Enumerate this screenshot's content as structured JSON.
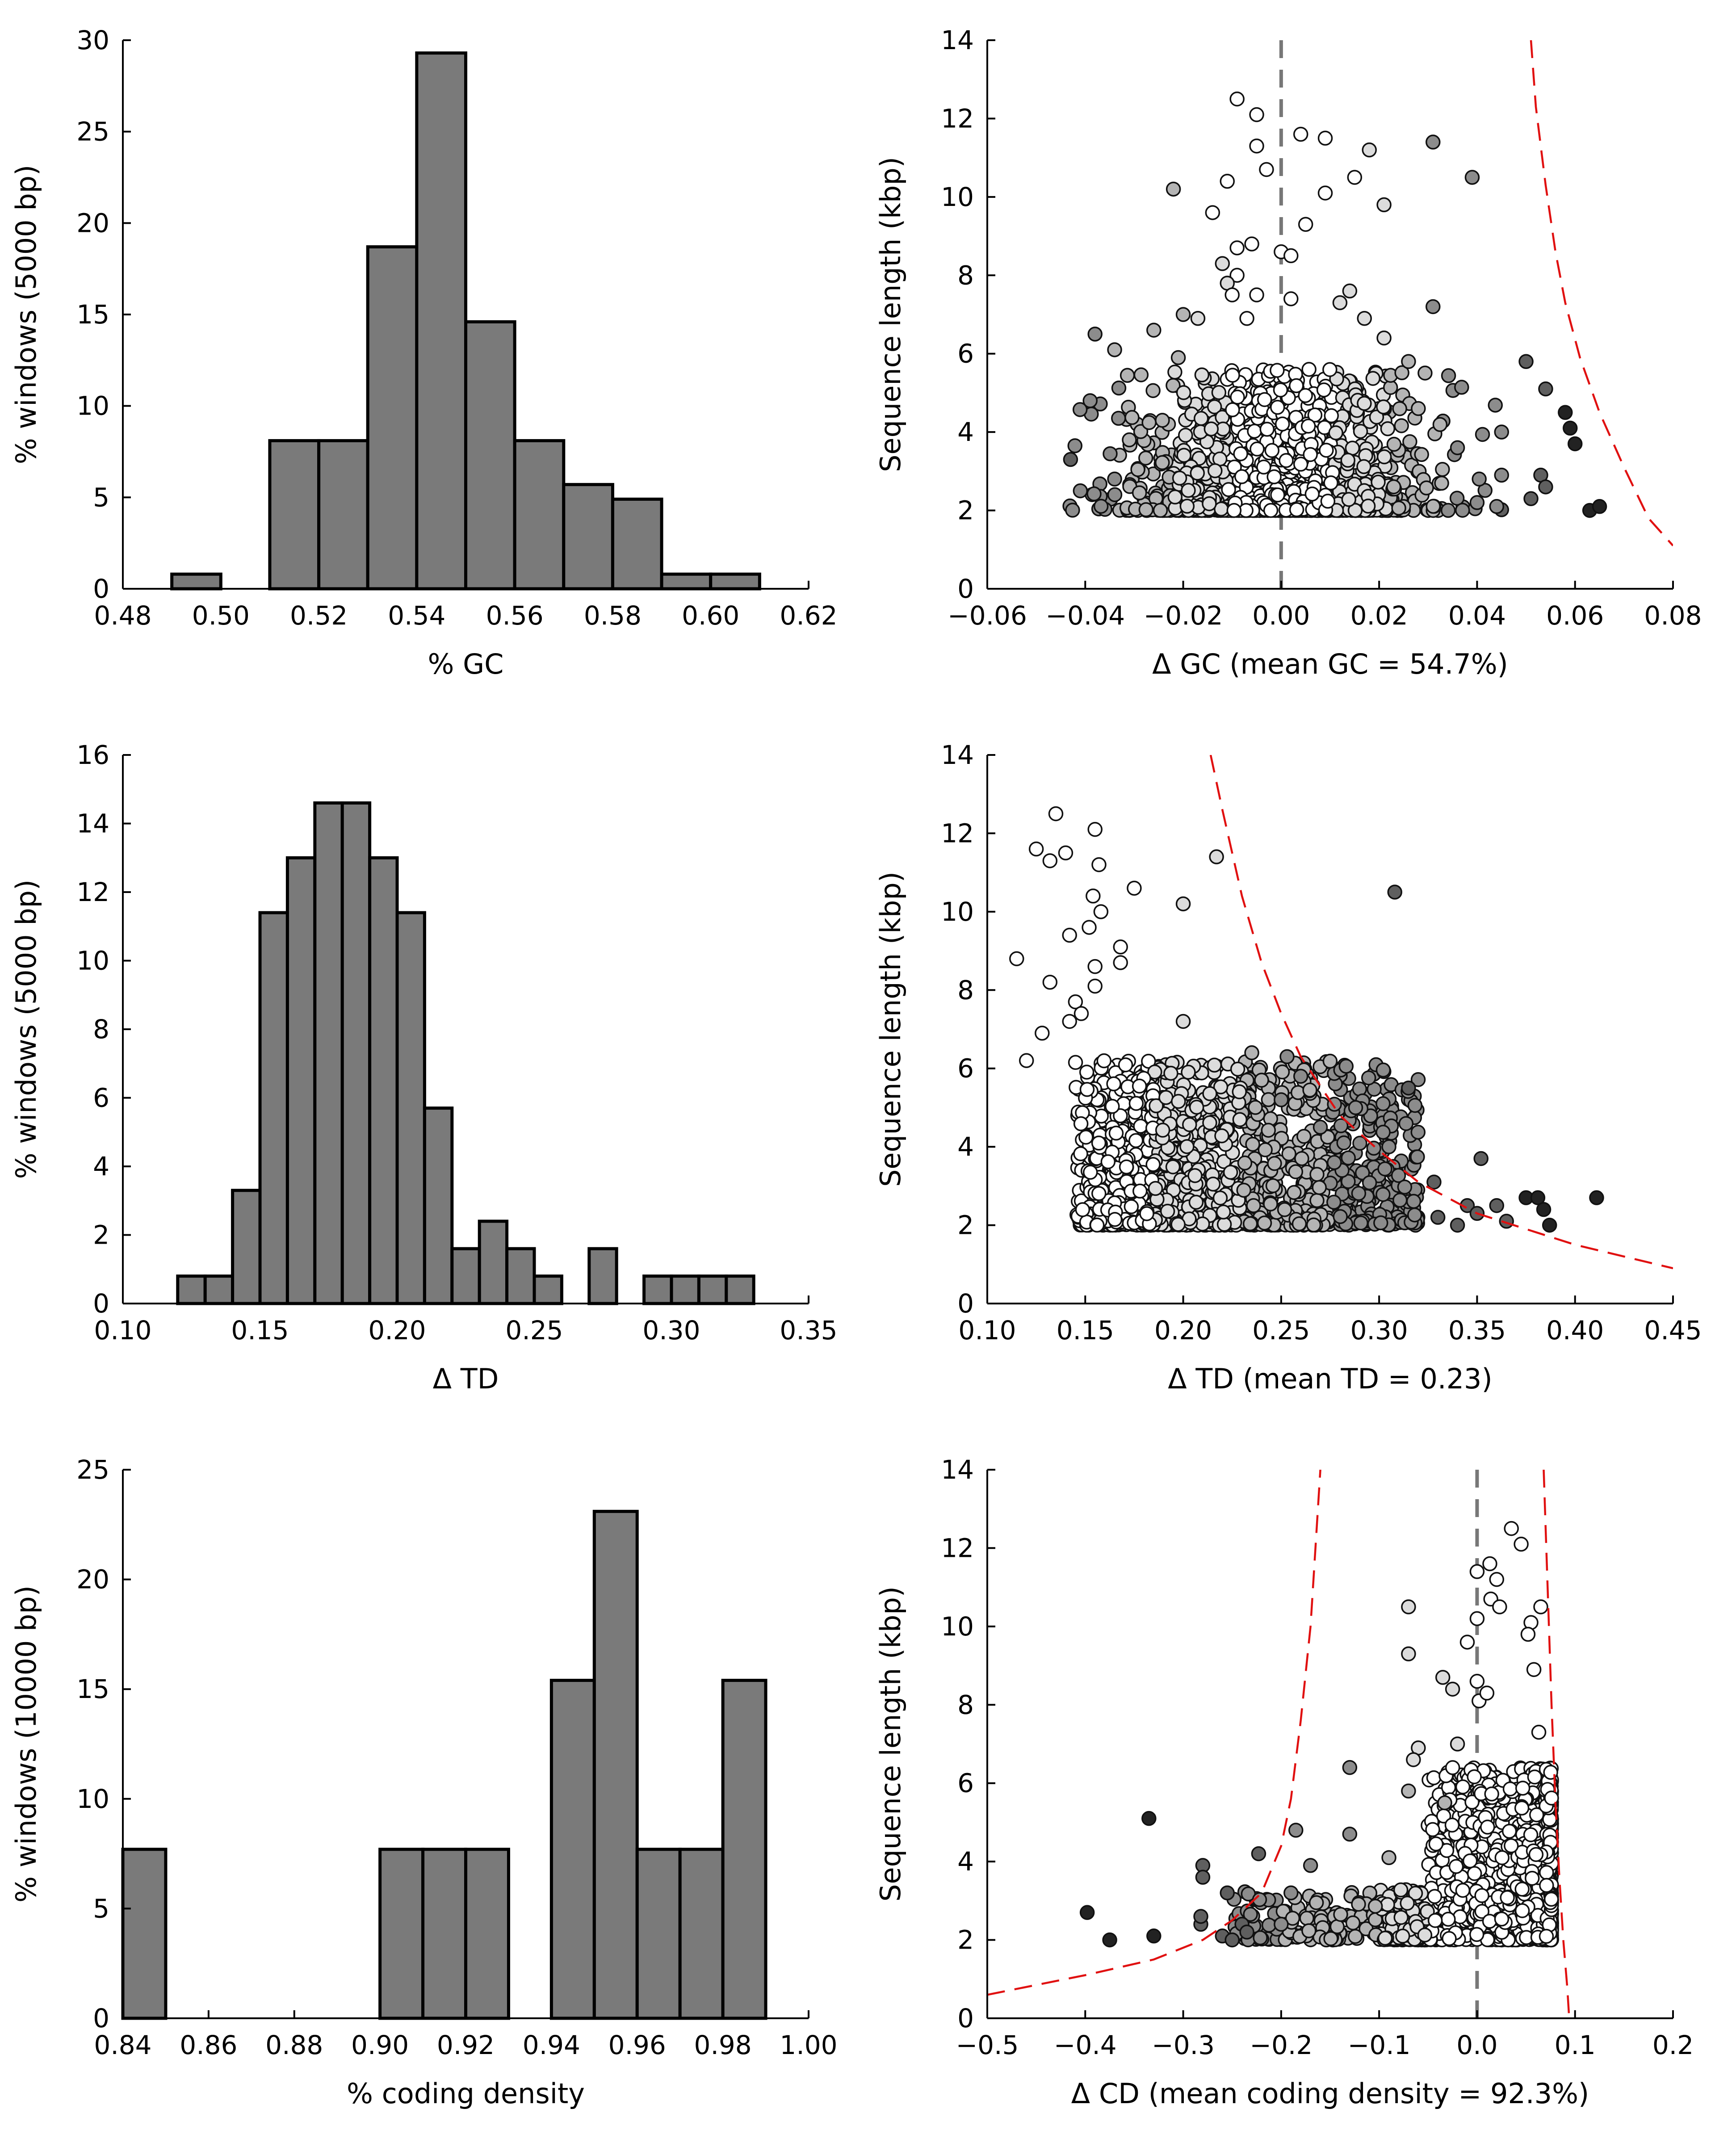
{
  "chart_data": [
    {
      "type": "bar",
      "panel": "gc-histogram",
      "xlabel": "% GC",
      "ylabel": "% windows (5000 bp)",
      "xlim": [
        0.48,
        0.62
      ],
      "ylim": [
        0,
        30
      ],
      "xticks": [
        "0.48",
        "0.50",
        "0.52",
        "0.54",
        "0.56",
        "0.58",
        "0.60",
        "0.62"
      ],
      "yticks": [
        "0",
        "5",
        "10",
        "15",
        "20",
        "25",
        "30"
      ],
      "bin_width": 0.01,
      "bins": [
        {
          "x0": 0.49,
          "value": 0.8
        },
        {
          "x0": 0.51,
          "value": 8.1
        },
        {
          "x0": 0.52,
          "value": 8.1
        },
        {
          "x0": 0.53,
          "value": 18.7
        },
        {
          "x0": 0.54,
          "value": 29.3
        },
        {
          "x0": 0.55,
          "value": 14.6
        },
        {
          "x0": 0.56,
          "value": 8.1
        },
        {
          "x0": 0.57,
          "value": 5.7
        },
        {
          "x0": 0.58,
          "value": 4.9
        },
        {
          "x0": 0.59,
          "value": 0.8
        },
        {
          "x0": 0.6,
          "value": 0.8
        }
      ]
    },
    {
      "type": "scatter",
      "panel": "gc-scatter",
      "xlabel": "Δ GC (mean GC = 54.7%)",
      "ylabel": "Sequence length (kbp)",
      "xlim": [
        -0.06,
        0.08
      ],
      "ylim": [
        0,
        14
      ],
      "xticks": [
        "−0.06",
        "−0.04",
        "−0.02",
        "0.00",
        "0.02",
        "0.04",
        "0.06",
        "0.08"
      ],
      "yticks": [
        "0",
        "2",
        "4",
        "6",
        "8",
        "10",
        "12",
        "14"
      ],
      "zero_line": true,
      "points": [
        [
          -0.009,
          12.5,
          0
        ],
        [
          -0.005,
          12.1,
          0
        ],
        [
          0.004,
          11.6,
          0
        ],
        [
          0.009,
          11.5,
          0
        ],
        [
          -0.005,
          11.3,
          0
        ],
        [
          0.018,
          11.2,
          1
        ],
        [
          0.031,
          11.4,
          3
        ],
        [
          0.039,
          10.5,
          3
        ],
        [
          -0.003,
          10.7,
          0
        ],
        [
          -0.011,
          10.4,
          0
        ],
        [
          0.015,
          10.5,
          0
        ],
        [
          -0.022,
          10.2,
          2
        ],
        [
          0.009,
          10.1,
          0
        ],
        [
          0.021,
          9.8,
          1
        ],
        [
          -0.014,
          9.6,
          0
        ],
        [
          0.005,
          9.3,
          0
        ],
        [
          -0.009,
          8.7,
          0
        ],
        [
          -0.006,
          8.8,
          0
        ],
        [
          0.0,
          8.6,
          0
        ],
        [
          0.002,
          8.5,
          0
        ],
        [
          -0.012,
          8.3,
          1
        ],
        [
          -0.009,
          8.0,
          0
        ],
        [
          -0.011,
          7.8,
          1
        ],
        [
          -0.01,
          7.5,
          0
        ],
        [
          0.014,
          7.6,
          1
        ],
        [
          0.012,
          7.3,
          1
        ],
        [
          -0.005,
          7.5,
          0
        ],
        [
          0.002,
          7.4,
          0
        ],
        [
          0.031,
          7.2,
          3
        ],
        [
          -0.02,
          7.0,
          2
        ],
        [
          -0.017,
          6.9,
          1
        ],
        [
          -0.007,
          6.9,
          0
        ],
        [
          0.017,
          6.9,
          1
        ],
        [
          -0.026,
          6.6,
          2
        ],
        [
          -0.038,
          6.5,
          3
        ],
        [
          0.021,
          6.4,
          1
        ],
        [
          -0.034,
          6.1,
          2
        ],
        [
          -0.021,
          5.9,
          2
        ],
        [
          0.026,
          5.8,
          2
        ],
        [
          0.05,
          5.8,
          4
        ],
        [
          -0.039,
          4.8,
          3
        ],
        [
          0.054,
          5.1,
          4
        ],
        [
          0.058,
          4.5,
          5
        ],
        [
          0.059,
          4.1,
          5
        ],
        [
          0.06,
          3.7,
          5
        ],
        [
          0.045,
          4.0,
          3
        ],
        [
          -0.043,
          3.3,
          4
        ],
        [
          0.053,
          2.9,
          4
        ],
        [
          0.054,
          2.6,
          4
        ],
        [
          0.051,
          2.3,
          4
        ],
        [
          0.063,
          2.0,
          5
        ],
        [
          0.065,
          2.1,
          5
        ],
        [
          0.04,
          2.2,
          3
        ],
        [
          0.044,
          2.1,
          3
        ],
        [
          -0.041,
          2.5,
          3
        ],
        [
          0.045,
          2.9,
          3
        ],
        [
          -0.034,
          2.8,
          3
        ],
        [
          0.036,
          3.6,
          3
        ],
        [
          0.028,
          4.6,
          2
        ],
        [
          -0.031,
          3.8,
          2
        ]
      ],
      "boundary_curves": [
        [
          [
            0.051,
            14.0
          ],
          [
            0.052,
            12.3
          ],
          [
            0.054,
            10.3
          ],
          [
            0.056,
            8.6
          ],
          [
            0.058,
            7.3
          ],
          [
            0.061,
            5.9
          ],
          [
            0.065,
            4.5
          ],
          [
            0.07,
            3.1
          ],
          [
            0.075,
            1.8
          ],
          [
            0.08,
            1.1
          ]
        ]
      ]
    },
    {
      "type": "bar",
      "panel": "td-histogram",
      "xlabel": "Δ TD",
      "ylabel": "% windows (5000 bp)",
      "xlim": [
        0.1,
        0.35
      ],
      "ylim": [
        0,
        16
      ],
      "xticks": [
        "0.10",
        "0.15",
        "0.20",
        "0.25",
        "0.30",
        "0.35"
      ],
      "yticks": [
        "0",
        "2",
        "4",
        "6",
        "8",
        "10",
        "12",
        "14",
        "16"
      ],
      "bin_width": 0.01,
      "bins": [
        {
          "x0": 0.12,
          "value": 0.8
        },
        {
          "x0": 0.13,
          "value": 0.8
        },
        {
          "x0": 0.14,
          "value": 3.3
        },
        {
          "x0": 0.15,
          "value": 11.4
        },
        {
          "x0": 0.16,
          "value": 13.0
        },
        {
          "x0": 0.17,
          "value": 14.6
        },
        {
          "x0": 0.18,
          "value": 14.6
        },
        {
          "x0": 0.19,
          "value": 13.0
        },
        {
          "x0": 0.2,
          "value": 11.4
        },
        {
          "x0": 0.21,
          "value": 5.7
        },
        {
          "x0": 0.22,
          "value": 1.6
        },
        {
          "x0": 0.23,
          "value": 2.4
        },
        {
          "x0": 0.24,
          "value": 1.6
        },
        {
          "x0": 0.25,
          "value": 0.8
        },
        {
          "x0": 0.27,
          "value": 1.6
        },
        {
          "x0": 0.29,
          "value": 0.8
        },
        {
          "x0": 0.3,
          "value": 0.8
        },
        {
          "x0": 0.31,
          "value": 0.8
        },
        {
          "x0": 0.32,
          "value": 0.8
        }
      ]
    },
    {
      "type": "scatter",
      "panel": "td-scatter",
      "xlabel": "Δ TD (mean TD = 0.23)",
      "ylabel": "Sequence length (kbp)",
      "xlim": [
        0.1,
        0.45
      ],
      "ylim": [
        0,
        14
      ],
      "xticks": [
        "0.10",
        "0.15",
        "0.20",
        "0.25",
        "0.30",
        "0.35",
        "0.40",
        "0.45"
      ],
      "yticks": [
        "0",
        "2",
        "4",
        "6",
        "8",
        "10",
        "12",
        "14"
      ],
      "zero_line": false,
      "points": [
        [
          0.135,
          12.5,
          0
        ],
        [
          0.125,
          11.6,
          0
        ],
        [
          0.132,
          11.3,
          0
        ],
        [
          0.14,
          11.5,
          0
        ],
        [
          0.155,
          12.1,
          0
        ],
        [
          0.157,
          11.2,
          0
        ],
        [
          0.217,
          11.4,
          1
        ],
        [
          0.308,
          10.5,
          4
        ],
        [
          0.175,
          10.6,
          0
        ],
        [
          0.154,
          10.4,
          0
        ],
        [
          0.2,
          10.2,
          1
        ],
        [
          0.158,
          10.0,
          0
        ],
        [
          0.142,
          9.4,
          0
        ],
        [
          0.152,
          9.6,
          0
        ],
        [
          0.115,
          8.8,
          0
        ],
        [
          0.168,
          9.1,
          0
        ],
        [
          0.168,
          8.7,
          0
        ],
        [
          0.155,
          8.6,
          0
        ],
        [
          0.132,
          8.2,
          0
        ],
        [
          0.155,
          8.1,
          0
        ],
        [
          0.145,
          7.7,
          0
        ],
        [
          0.148,
          7.4,
          0
        ],
        [
          0.142,
          7.2,
          0
        ],
        [
          0.128,
          6.9,
          0
        ],
        [
          0.2,
          7.2,
          1
        ],
        [
          0.12,
          6.2,
          0
        ],
        [
          0.235,
          6.4,
          2
        ],
        [
          0.253,
          6.3,
          3
        ],
        [
          0.24,
          5.7,
          2
        ],
        [
          0.26,
          5.8,
          3
        ],
        [
          0.25,
          5.2,
          3
        ],
        [
          0.288,
          5.0,
          3
        ],
        [
          0.315,
          5.5,
          4
        ],
        [
          0.302,
          5.1,
          3
        ],
        [
          0.27,
          4.5,
          3
        ],
        [
          0.282,
          4.1,
          3
        ],
        [
          0.305,
          4.0,
          3
        ],
        [
          0.328,
          3.1,
          4
        ],
        [
          0.352,
          3.7,
          4
        ],
        [
          0.375,
          2.7,
          5
        ],
        [
          0.381,
          2.7,
          5
        ],
        [
          0.411,
          2.7,
          5
        ],
        [
          0.384,
          2.4,
          5
        ],
        [
          0.387,
          2.0,
          5
        ],
        [
          0.36,
          2.5,
          4
        ],
        [
          0.365,
          2.1,
          4
        ],
        [
          0.345,
          2.5,
          4
        ],
        [
          0.35,
          2.3,
          4
        ],
        [
          0.33,
          2.2,
          4
        ],
        [
          0.34,
          2.0,
          4
        ]
      ],
      "boundary_curves": [
        [
          [
            0.214,
            14.0
          ],
          [
            0.22,
            12.6
          ],
          [
            0.23,
            10.4
          ],
          [
            0.24,
            8.7
          ],
          [
            0.25,
            7.4
          ],
          [
            0.26,
            6.3
          ],
          [
            0.28,
            4.8
          ],
          [
            0.3,
            3.9
          ],
          [
            0.32,
            3.1
          ],
          [
            0.35,
            2.3
          ],
          [
            0.4,
            1.5
          ],
          [
            0.45,
            0.9
          ]
        ]
      ]
    },
    {
      "type": "bar",
      "panel": "cd-histogram",
      "xlabel": "% coding density",
      "ylabel": "% windows (10000 bp)",
      "xlim": [
        0.84,
        1.0
      ],
      "ylim": [
        0,
        25
      ],
      "xticks": [
        "0.84",
        "0.86",
        "0.88",
        "0.90",
        "0.92",
        "0.94",
        "0.96",
        "0.98",
        "1.00"
      ],
      "yticks": [
        "0",
        "5",
        "10",
        "15",
        "20",
        "25"
      ],
      "bin_width": 0.01,
      "bins": [
        {
          "x0": 0.84,
          "value": 7.7
        },
        {
          "x0": 0.9,
          "value": 7.7
        },
        {
          "x0": 0.91,
          "value": 7.7
        },
        {
          "x0": 0.92,
          "value": 7.7
        },
        {
          "x0": 0.94,
          "value": 15.4
        },
        {
          "x0": 0.95,
          "value": 23.1
        },
        {
          "x0": 0.96,
          "value": 7.7
        },
        {
          "x0": 0.97,
          "value": 7.7
        },
        {
          "x0": 0.98,
          "value": 15.4
        }
      ]
    },
    {
      "type": "scatter",
      "panel": "cd-scatter",
      "xlabel": "Δ CD (mean coding density = 92.3%)",
      "ylabel": "Sequence length (kbp)",
      "xlim": [
        -0.5,
        0.2
      ],
      "ylim": [
        0,
        14
      ],
      "xticks": [
        "−0.5",
        "−0.4",
        "−0.3",
        "−0.2",
        "−0.1",
        "0.0",
        "0.1",
        "0.2"
      ],
      "yticks": [
        "0",
        "2",
        "4",
        "6",
        "8",
        "10",
        "12",
        "14"
      ],
      "zero_line": true,
      "points": [
        [
          0.035,
          12.5,
          0
        ],
        [
          0.045,
          12.1,
          0
        ],
        [
          0.013,
          11.6,
          0
        ],
        [
          0.0,
          11.4,
          0
        ],
        [
          0.02,
          11.2,
          0
        ],
        [
          0.014,
          10.7,
          0
        ],
        [
          0.023,
          10.5,
          0
        ],
        [
          0.065,
          10.5,
          0
        ],
        [
          -0.07,
          10.5,
          1
        ],
        [
          0.055,
          10.1,
          0
        ],
        [
          0.0,
          10.2,
          0
        ],
        [
          0.052,
          9.8,
          0
        ],
        [
          -0.01,
          9.6,
          0
        ],
        [
          -0.07,
          9.3,
          1
        ],
        [
          0.058,
          8.9,
          0
        ],
        [
          -0.035,
          8.7,
          1
        ],
        [
          -0.025,
          8.4,
          1
        ],
        [
          0.0,
          8.6,
          0
        ],
        [
          0.002,
          8.1,
          0
        ],
        [
          0.01,
          8.3,
          0
        ],
        [
          0.063,
          7.3,
          0
        ],
        [
          -0.02,
          7.0,
          1
        ],
        [
          -0.06,
          6.9,
          1
        ],
        [
          -0.065,
          6.6,
          1
        ],
        [
          -0.13,
          6.4,
          3
        ],
        [
          -0.07,
          5.8,
          2
        ],
        [
          -0.033,
          5.5,
          2
        ],
        [
          -0.335,
          5.1,
          5
        ],
        [
          -0.185,
          4.8,
          3
        ],
        [
          -0.223,
          4.2,
          4
        ],
        [
          -0.28,
          3.9,
          4
        ],
        [
          -0.28,
          3.6,
          4
        ],
        [
          -0.255,
          3.2,
          4
        ],
        [
          -0.398,
          2.7,
          5
        ],
        [
          -0.375,
          2.0,
          5
        ],
        [
          -0.33,
          2.1,
          5
        ],
        [
          -0.282,
          2.4,
          4
        ],
        [
          -0.282,
          2.6,
          4
        ],
        [
          -0.26,
          2.1,
          4
        ],
        [
          -0.25,
          2.0,
          4
        ],
        [
          -0.24,
          2.4,
          4
        ],
        [
          -0.235,
          2.2,
          4
        ],
        [
          -0.13,
          4.7,
          3
        ],
        [
          -0.17,
          3.9,
          3
        ],
        [
          -0.09,
          4.1,
          2
        ],
        [
          -0.19,
          3.2,
          3
        ],
        [
          -0.2,
          2.4,
          3
        ]
      ],
      "boundary_curves": [
        [
          [
            -0.5,
            0.6
          ],
          [
            -0.4,
            1.1
          ],
          [
            -0.33,
            1.5
          ],
          [
            -0.28,
            2.0
          ],
          [
            -0.25,
            2.5
          ],
          [
            -0.22,
            3.2
          ],
          [
            -0.2,
            4.4
          ],
          [
            -0.19,
            5.6
          ],
          [
            -0.18,
            7.6
          ],
          [
            -0.17,
            10.0
          ],
          [
            -0.16,
            14.0
          ]
        ],
        [
          [
            0.068,
            14.0
          ],
          [
            0.072,
            11.0
          ],
          [
            0.076,
            8.0
          ],
          [
            0.08,
            5.5
          ],
          [
            0.084,
            3.6
          ],
          [
            0.088,
            2.0
          ],
          [
            0.092,
            0.8
          ],
          [
            0.094,
            0.0
          ]
        ]
      ]
    }
  ]
}
